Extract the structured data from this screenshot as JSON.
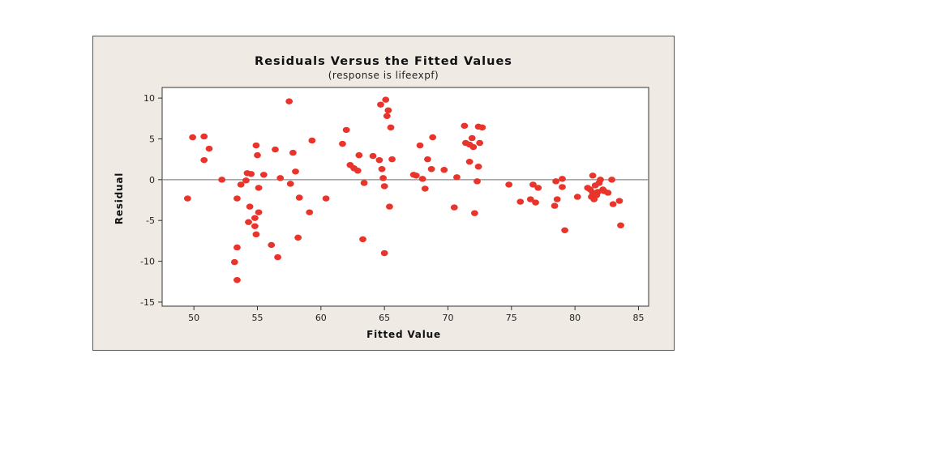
{
  "chart_data": {
    "type": "scatter",
    "title": "Residuals Versus the Fitted Values",
    "subtitle": "(response is lifeexpf)",
    "xlabel": "Fitted Value",
    "ylabel": "Residual",
    "xlim": [
      47.5,
      85.8
    ],
    "ylim": [
      -15.5,
      11.3
    ],
    "xticks": [
      50,
      55,
      60,
      65,
      70,
      75,
      80,
      85
    ],
    "yticks": [
      10,
      5,
      0,
      -5,
      -10,
      -15
    ],
    "reference_line_y": 0,
    "marker_color": "#e8342a",
    "reference_line_color": "#8a8a8a",
    "points": [
      [
        49.5,
        -2.3
      ],
      [
        49.9,
        5.2
      ],
      [
        50.8,
        5.3
      ],
      [
        50.8,
        2.4
      ],
      [
        51.2,
        3.8
      ],
      [
        52.2,
        0.0
      ],
      [
        53.2,
        -10.1
      ],
      [
        53.4,
        -12.3
      ],
      [
        53.4,
        -8.3
      ],
      [
        53.4,
        -2.3
      ],
      [
        53.7,
        -0.6
      ],
      [
        54.1,
        -0.1
      ],
      [
        54.2,
        0.8
      ],
      [
        54.3,
        -5.2
      ],
      [
        54.4,
        -3.3
      ],
      [
        54.5,
        0.7
      ],
      [
        54.8,
        -5.7
      ],
      [
        54.8,
        -4.7
      ],
      [
        54.9,
        -6.7
      ],
      [
        54.9,
        4.2
      ],
      [
        55.0,
        3.0
      ],
      [
        55.1,
        -1.0
      ],
      [
        55.1,
        -4.0
      ],
      [
        55.5,
        0.6
      ],
      [
        56.1,
        -8.0
      ],
      [
        56.4,
        3.7
      ],
      [
        56.6,
        -9.5
      ],
      [
        56.8,
        0.2
      ],
      [
        57.5,
        9.6
      ],
      [
        57.6,
        -0.5
      ],
      [
        57.8,
        3.3
      ],
      [
        58.0,
        1.0
      ],
      [
        58.2,
        -7.1
      ],
      [
        58.3,
        -2.2
      ],
      [
        59.1,
        -4.0
      ],
      [
        59.3,
        4.8
      ],
      [
        60.4,
        -2.3
      ],
      [
        61.7,
        4.4
      ],
      [
        62.0,
        6.1
      ],
      [
        62.3,
        1.8
      ],
      [
        62.6,
        1.4
      ],
      [
        62.9,
        1.1
      ],
      [
        63.0,
        3.0
      ],
      [
        63.3,
        -7.3
      ],
      [
        63.4,
        -0.4
      ],
      [
        64.1,
        2.9
      ],
      [
        64.6,
        2.4
      ],
      [
        64.7,
        9.2
      ],
      [
        64.8,
        1.3
      ],
      [
        64.9,
        0.2
      ],
      [
        65.0,
        -0.8
      ],
      [
        65.0,
        -9.0
      ],
      [
        65.1,
        9.8
      ],
      [
        65.2,
        7.8
      ],
      [
        65.3,
        8.5
      ],
      [
        65.4,
        -3.3
      ],
      [
        65.5,
        6.4
      ],
      [
        65.6,
        2.5
      ],
      [
        67.3,
        0.6
      ],
      [
        67.5,
        0.5
      ],
      [
        67.8,
        4.2
      ],
      [
        68.0,
        0.1
      ],
      [
        68.2,
        -1.1
      ],
      [
        68.4,
        2.5
      ],
      [
        68.7,
        1.3
      ],
      [
        68.8,
        5.2
      ],
      [
        69.7,
        1.2
      ],
      [
        70.5,
        -3.4
      ],
      [
        70.7,
        0.3
      ],
      [
        71.3,
        6.6
      ],
      [
        71.4,
        4.5
      ],
      [
        71.7,
        4.3
      ],
      [
        71.7,
        2.2
      ],
      [
        71.9,
        5.1
      ],
      [
        72.0,
        4.0
      ],
      [
        72.1,
        -4.1
      ],
      [
        72.3,
        -0.2
      ],
      [
        72.4,
        1.6
      ],
      [
        72.4,
        6.5
      ],
      [
        72.5,
        4.5
      ],
      [
        72.7,
        6.4
      ],
      [
        74.8,
        -0.6
      ],
      [
        75.7,
        -2.7
      ],
      [
        76.5,
        -2.4
      ],
      [
        76.7,
        -0.6
      ],
      [
        76.9,
        -2.8
      ],
      [
        77.1,
        -1.0
      ],
      [
        78.4,
        -3.2
      ],
      [
        78.5,
        -0.2
      ],
      [
        78.6,
        -2.4
      ],
      [
        79.0,
        -0.9
      ],
      [
        79.0,
        0.1
      ],
      [
        79.2,
        -6.2
      ],
      [
        80.2,
        -2.1
      ],
      [
        81.0,
        -1.0
      ],
      [
        81.2,
        -1.2
      ],
      [
        81.3,
        -2.1
      ],
      [
        81.4,
        -1.6
      ],
      [
        81.4,
        0.5
      ],
      [
        81.5,
        -2.4
      ],
      [
        81.6,
        -0.7
      ],
      [
        81.7,
        -1.9
      ],
      [
        81.8,
        -1.5
      ],
      [
        81.9,
        -0.4
      ],
      [
        82.0,
        0.0
      ],
      [
        82.2,
        -1.2
      ],
      [
        82.3,
        -1.4
      ],
      [
        82.6,
        -1.6
      ],
      [
        82.9,
        0.0
      ],
      [
        83.0,
        -3.0
      ],
      [
        83.5,
        -2.6
      ],
      [
        83.6,
        -5.6
      ]
    ]
  }
}
